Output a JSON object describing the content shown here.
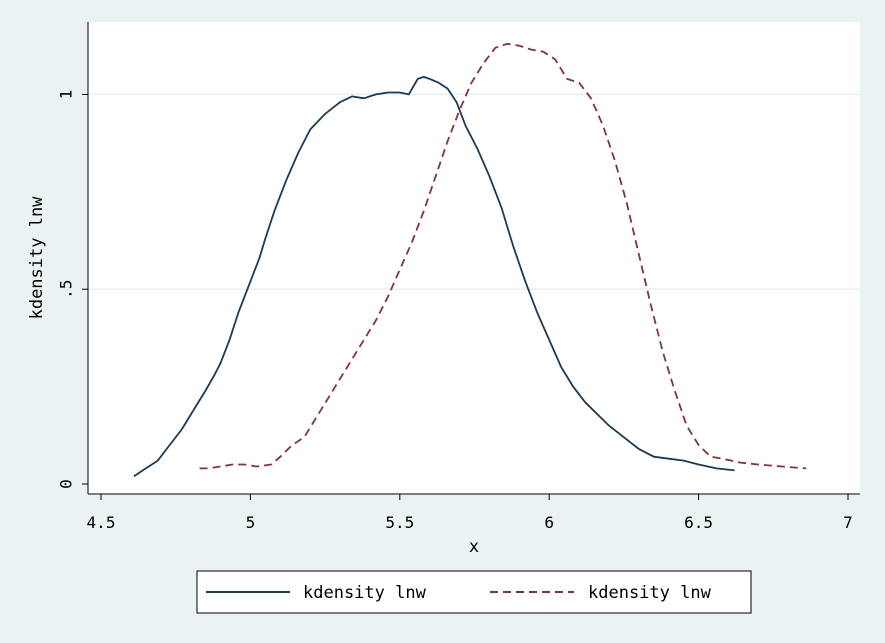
{
  "chart_data": {
    "type": "line",
    "title": "",
    "xlabel": "x",
    "ylabel": "kdensity lnw",
    "xlim": [
      4.5,
      7
    ],
    "ylim": [
      0,
      1.15
    ],
    "xticks": [
      {
        "value": 4.5,
        "label": "4.5"
      },
      {
        "value": 5,
        "label": "5"
      },
      {
        "value": 5.5,
        "label": "5.5"
      },
      {
        "value": 6,
        "label": "6"
      },
      {
        "value": 6.5,
        "label": "6.5"
      },
      {
        "value": 7,
        "label": "7"
      }
    ],
    "yticks": [
      {
        "value": 0,
        "label": "0"
      },
      {
        "value": 0.5,
        "label": ".5"
      },
      {
        "value": 1,
        "label": "1"
      }
    ],
    "grid": "horizontal",
    "legend_position": "bottom",
    "series": [
      {
        "name": "kdensity lnw",
        "color": "#1a3a5c",
        "style": "solid",
        "points": [
          [
            4.61,
            0.02
          ],
          [
            4.65,
            0.04
          ],
          [
            4.69,
            0.06
          ],
          [
            4.73,
            0.1
          ],
          [
            4.77,
            0.14
          ],
          [
            4.81,
            0.19
          ],
          [
            4.85,
            0.24
          ],
          [
            4.88,
            0.28
          ],
          [
            4.9,
            0.31
          ],
          [
            4.93,
            0.37
          ],
          [
            4.96,
            0.44
          ],
          [
            5.0,
            0.52
          ],
          [
            5.03,
            0.58
          ],
          [
            5.05,
            0.63
          ],
          [
            5.08,
            0.7
          ],
          [
            5.12,
            0.78
          ],
          [
            5.16,
            0.85
          ],
          [
            5.2,
            0.91
          ],
          [
            5.25,
            0.95
          ],
          [
            5.3,
            0.98
          ],
          [
            5.34,
            0.995
          ],
          [
            5.38,
            0.99
          ],
          [
            5.42,
            1.0
          ],
          [
            5.46,
            1.005
          ],
          [
            5.5,
            1.005
          ],
          [
            5.53,
            1.0
          ],
          [
            5.56,
            1.04
          ],
          [
            5.58,
            1.045
          ],
          [
            5.6,
            1.04
          ],
          [
            5.63,
            1.03
          ],
          [
            5.66,
            1.015
          ],
          [
            5.69,
            0.98
          ],
          [
            5.72,
            0.92
          ],
          [
            5.76,
            0.86
          ],
          [
            5.8,
            0.79
          ],
          [
            5.84,
            0.71
          ],
          [
            5.88,
            0.61
          ],
          [
            5.92,
            0.52
          ],
          [
            5.96,
            0.44
          ],
          [
            6.0,
            0.37
          ],
          [
            6.04,
            0.3
          ],
          [
            6.08,
            0.25
          ],
          [
            6.12,
            0.21
          ],
          [
            6.16,
            0.18
          ],
          [
            6.2,
            0.15
          ],
          [
            6.25,
            0.12
          ],
          [
            6.3,
            0.09
          ],
          [
            6.35,
            0.07
          ],
          [
            6.4,
            0.065
          ],
          [
            6.45,
            0.06
          ],
          [
            6.5,
            0.05
          ],
          [
            6.56,
            0.04
          ],
          [
            6.62,
            0.035
          ]
        ]
      },
      {
        "name": "kdensity lnw",
        "color": "#8c2f39",
        "style": "dashed",
        "points": [
          [
            4.83,
            0.04
          ],
          [
            4.86,
            0.04
          ],
          [
            4.9,
            0.045
          ],
          [
            4.94,
            0.05
          ],
          [
            4.98,
            0.05
          ],
          [
            5.02,
            0.045
          ],
          [
            5.07,
            0.05
          ],
          [
            5.1,
            0.07
          ],
          [
            5.14,
            0.1
          ],
          [
            5.18,
            0.12
          ],
          [
            5.22,
            0.17
          ],
          [
            5.26,
            0.22
          ],
          [
            5.3,
            0.27
          ],
          [
            5.34,
            0.32
          ],
          [
            5.38,
            0.37
          ],
          [
            5.42,
            0.42
          ],
          [
            5.46,
            0.48
          ],
          [
            5.5,
            0.55
          ],
          [
            5.54,
            0.62
          ],
          [
            5.58,
            0.7
          ],
          [
            5.62,
            0.79
          ],
          [
            5.66,
            0.88
          ],
          [
            5.7,
            0.96
          ],
          [
            5.74,
            1.03
          ],
          [
            5.78,
            1.08
          ],
          [
            5.82,
            1.12
          ],
          [
            5.86,
            1.13
          ],
          [
            5.9,
            1.125
          ],
          [
            5.94,
            1.115
          ],
          [
            5.98,
            1.11
          ],
          [
            6.02,
            1.09
          ],
          [
            6.06,
            1.04
          ],
          [
            6.1,
            1.03
          ],
          [
            6.14,
            0.99
          ],
          [
            6.18,
            0.92
          ],
          [
            6.22,
            0.83
          ],
          [
            6.26,
            0.72
          ],
          [
            6.3,
            0.59
          ],
          [
            6.34,
            0.46
          ],
          [
            6.38,
            0.34
          ],
          [
            6.42,
            0.24
          ],
          [
            6.46,
            0.15
          ],
          [
            6.5,
            0.1
          ],
          [
            6.54,
            0.07
          ],
          [
            6.58,
            0.065
          ],
          [
            6.64,
            0.055
          ],
          [
            6.7,
            0.05
          ],
          [
            6.78,
            0.045
          ],
          [
            6.86,
            0.04
          ]
        ]
      }
    ]
  }
}
